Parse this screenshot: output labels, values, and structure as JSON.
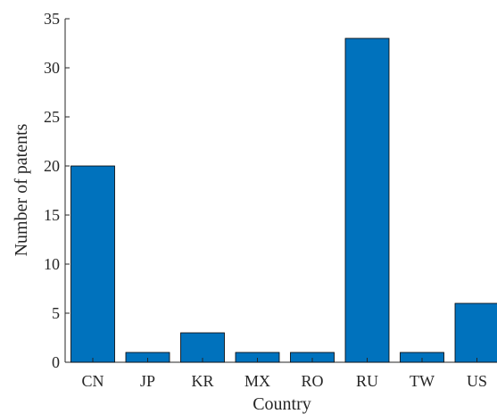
{
  "chart_data": {
    "type": "bar",
    "categories": [
      "CN",
      "JP",
      "KR",
      "MX",
      "RO",
      "RU",
      "TW",
      "US"
    ],
    "values": [
      20,
      1,
      3,
      1,
      1,
      33,
      1,
      6
    ],
    "title": "",
    "xlabel": "Country",
    "ylabel": "Number of patents",
    "ylim": [
      0,
      35
    ],
    "yticks": [
      0,
      5,
      10,
      15,
      20,
      25,
      30,
      35
    ],
    "grid": false,
    "bar_color": "#0072BD"
  }
}
